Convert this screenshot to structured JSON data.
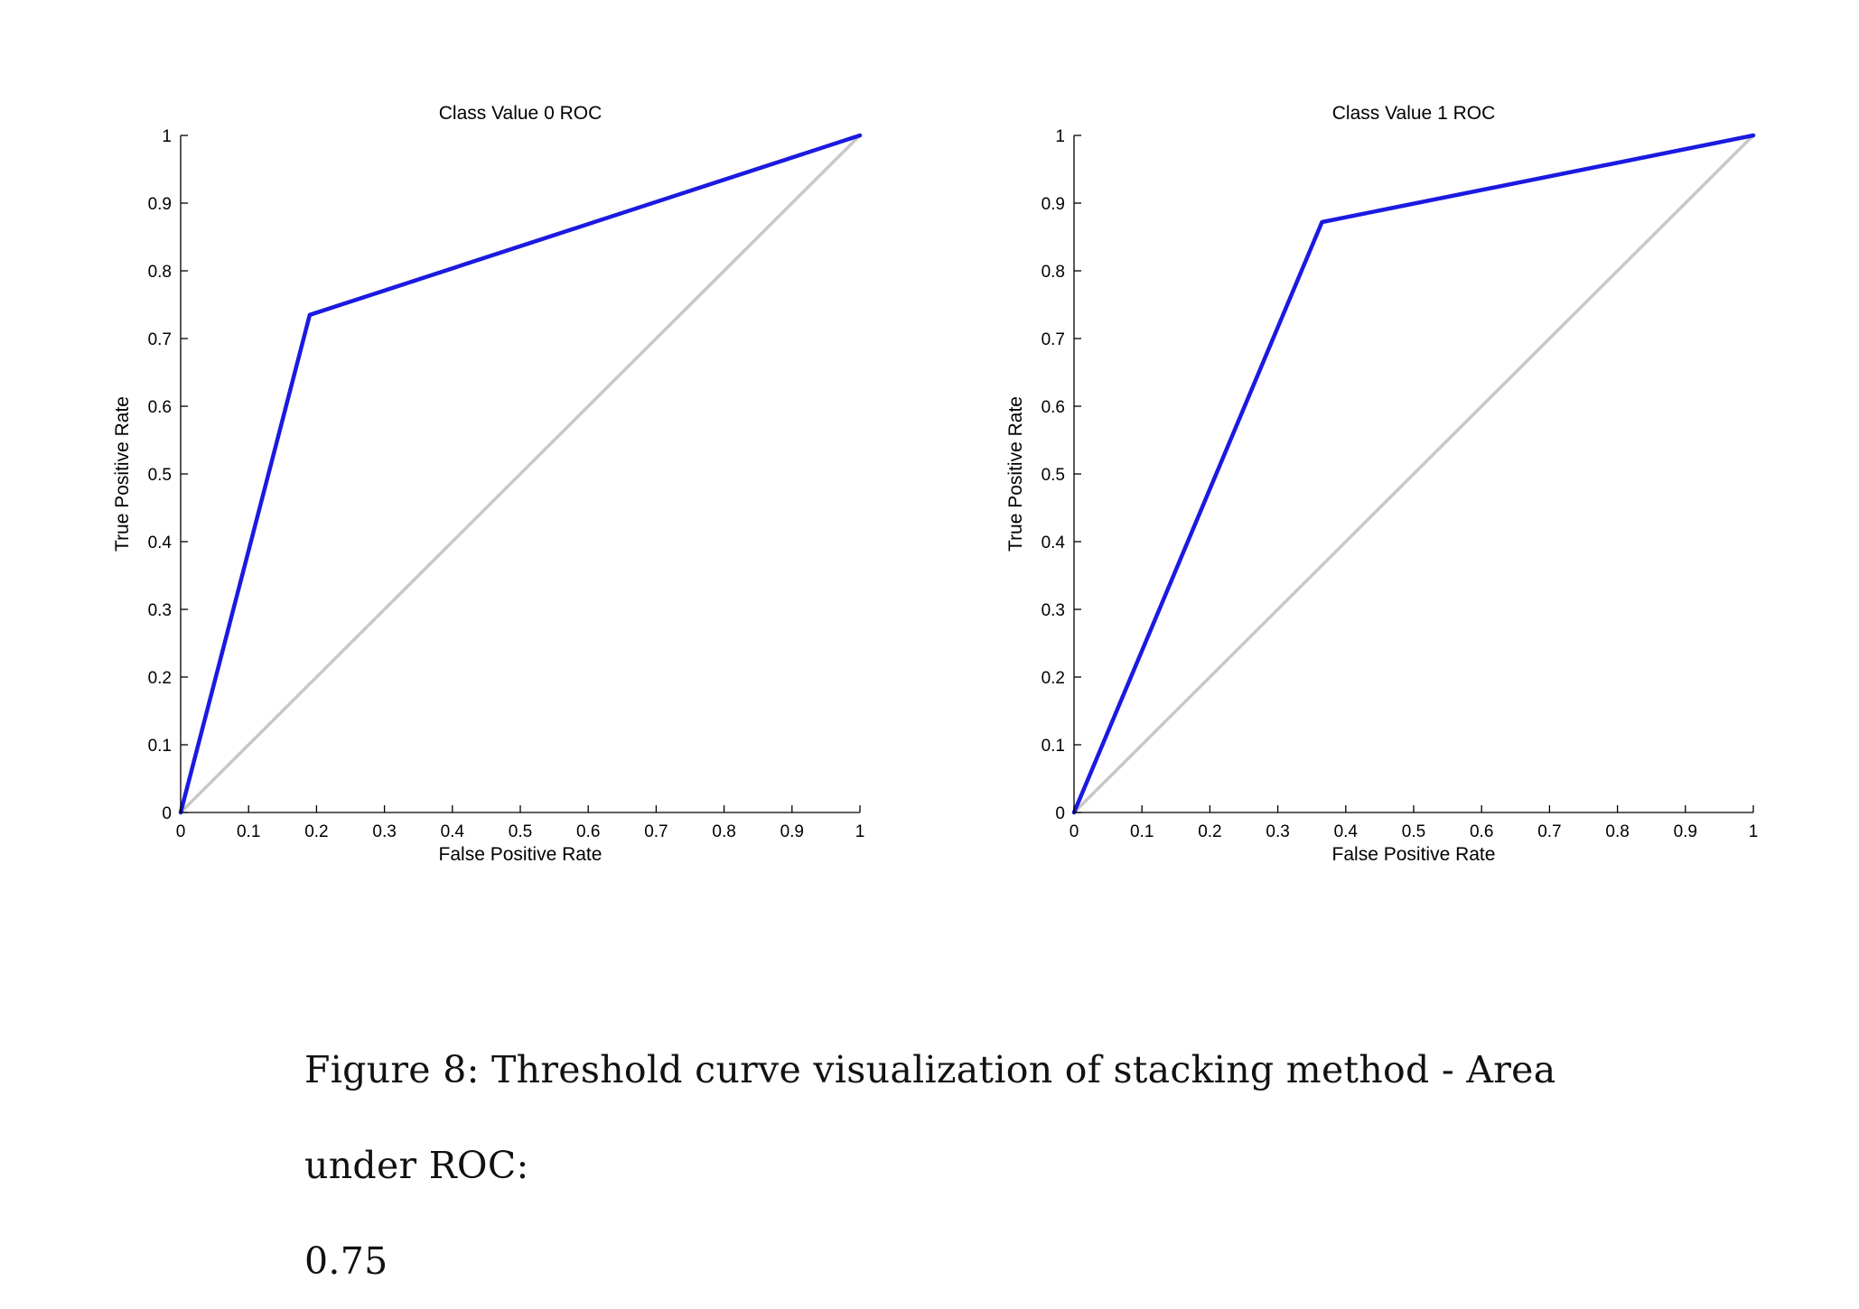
{
  "chart_data": [
    {
      "type": "line",
      "title": "Class Value 0 ROC",
      "xlabel": "False Positive Rate",
      "ylabel": "True Positive Rate",
      "xlim": [
        0,
        1
      ],
      "ylim": [
        0,
        1
      ],
      "xticks": [
        "0",
        "0.1",
        "0.2",
        "0.3",
        "0.4",
        "0.5",
        "0.6",
        "0.7",
        "0.8",
        "0.9",
        "1"
      ],
      "yticks": [
        "0",
        "0.1",
        "0.2",
        "0.3",
        "0.4",
        "0.5",
        "0.6",
        "0.7",
        "0.8",
        "0.9",
        "1"
      ],
      "grid": false,
      "series": [
        {
          "color": "#1a1ae0",
          "x": [
            0,
            0.19,
            1
          ],
          "y": [
            0,
            0.735,
            1
          ]
        },
        {
          "color": "#c8c8c8",
          "x": [
            0,
            1
          ],
          "y": [
            0,
            1
          ]
        }
      ]
    },
    {
      "type": "line",
      "title": "Class Value 1 ROC",
      "xlabel": "False Positive Rate",
      "ylabel": "True Positive Rate",
      "xlim": [
        0,
        1
      ],
      "ylim": [
        0,
        1
      ],
      "xticks": [
        "0",
        "0.1",
        "0.2",
        "0.3",
        "0.4",
        "0.5",
        "0.6",
        "0.7",
        "0.8",
        "0.9",
        "1"
      ],
      "yticks": [
        "0",
        "0.1",
        "0.2",
        "0.3",
        "0.4",
        "0.5",
        "0.6",
        "0.7",
        "0.8",
        "0.9",
        "1"
      ],
      "grid": false,
      "series": [
        {
          "color": "#1a1ae0",
          "x": [
            0,
            0.365,
            1
          ],
          "y": [
            0,
            0.872,
            1
          ]
        },
        {
          "color": "#c8c8c8",
          "x": [
            0,
            1
          ],
          "y": [
            0,
            1
          ]
        }
      ]
    }
  ],
  "caption": {
    "line1": "Figure 8:  Threshold curve visualization of stacking method - Area under ROC:",
    "line2": "0.75"
  }
}
